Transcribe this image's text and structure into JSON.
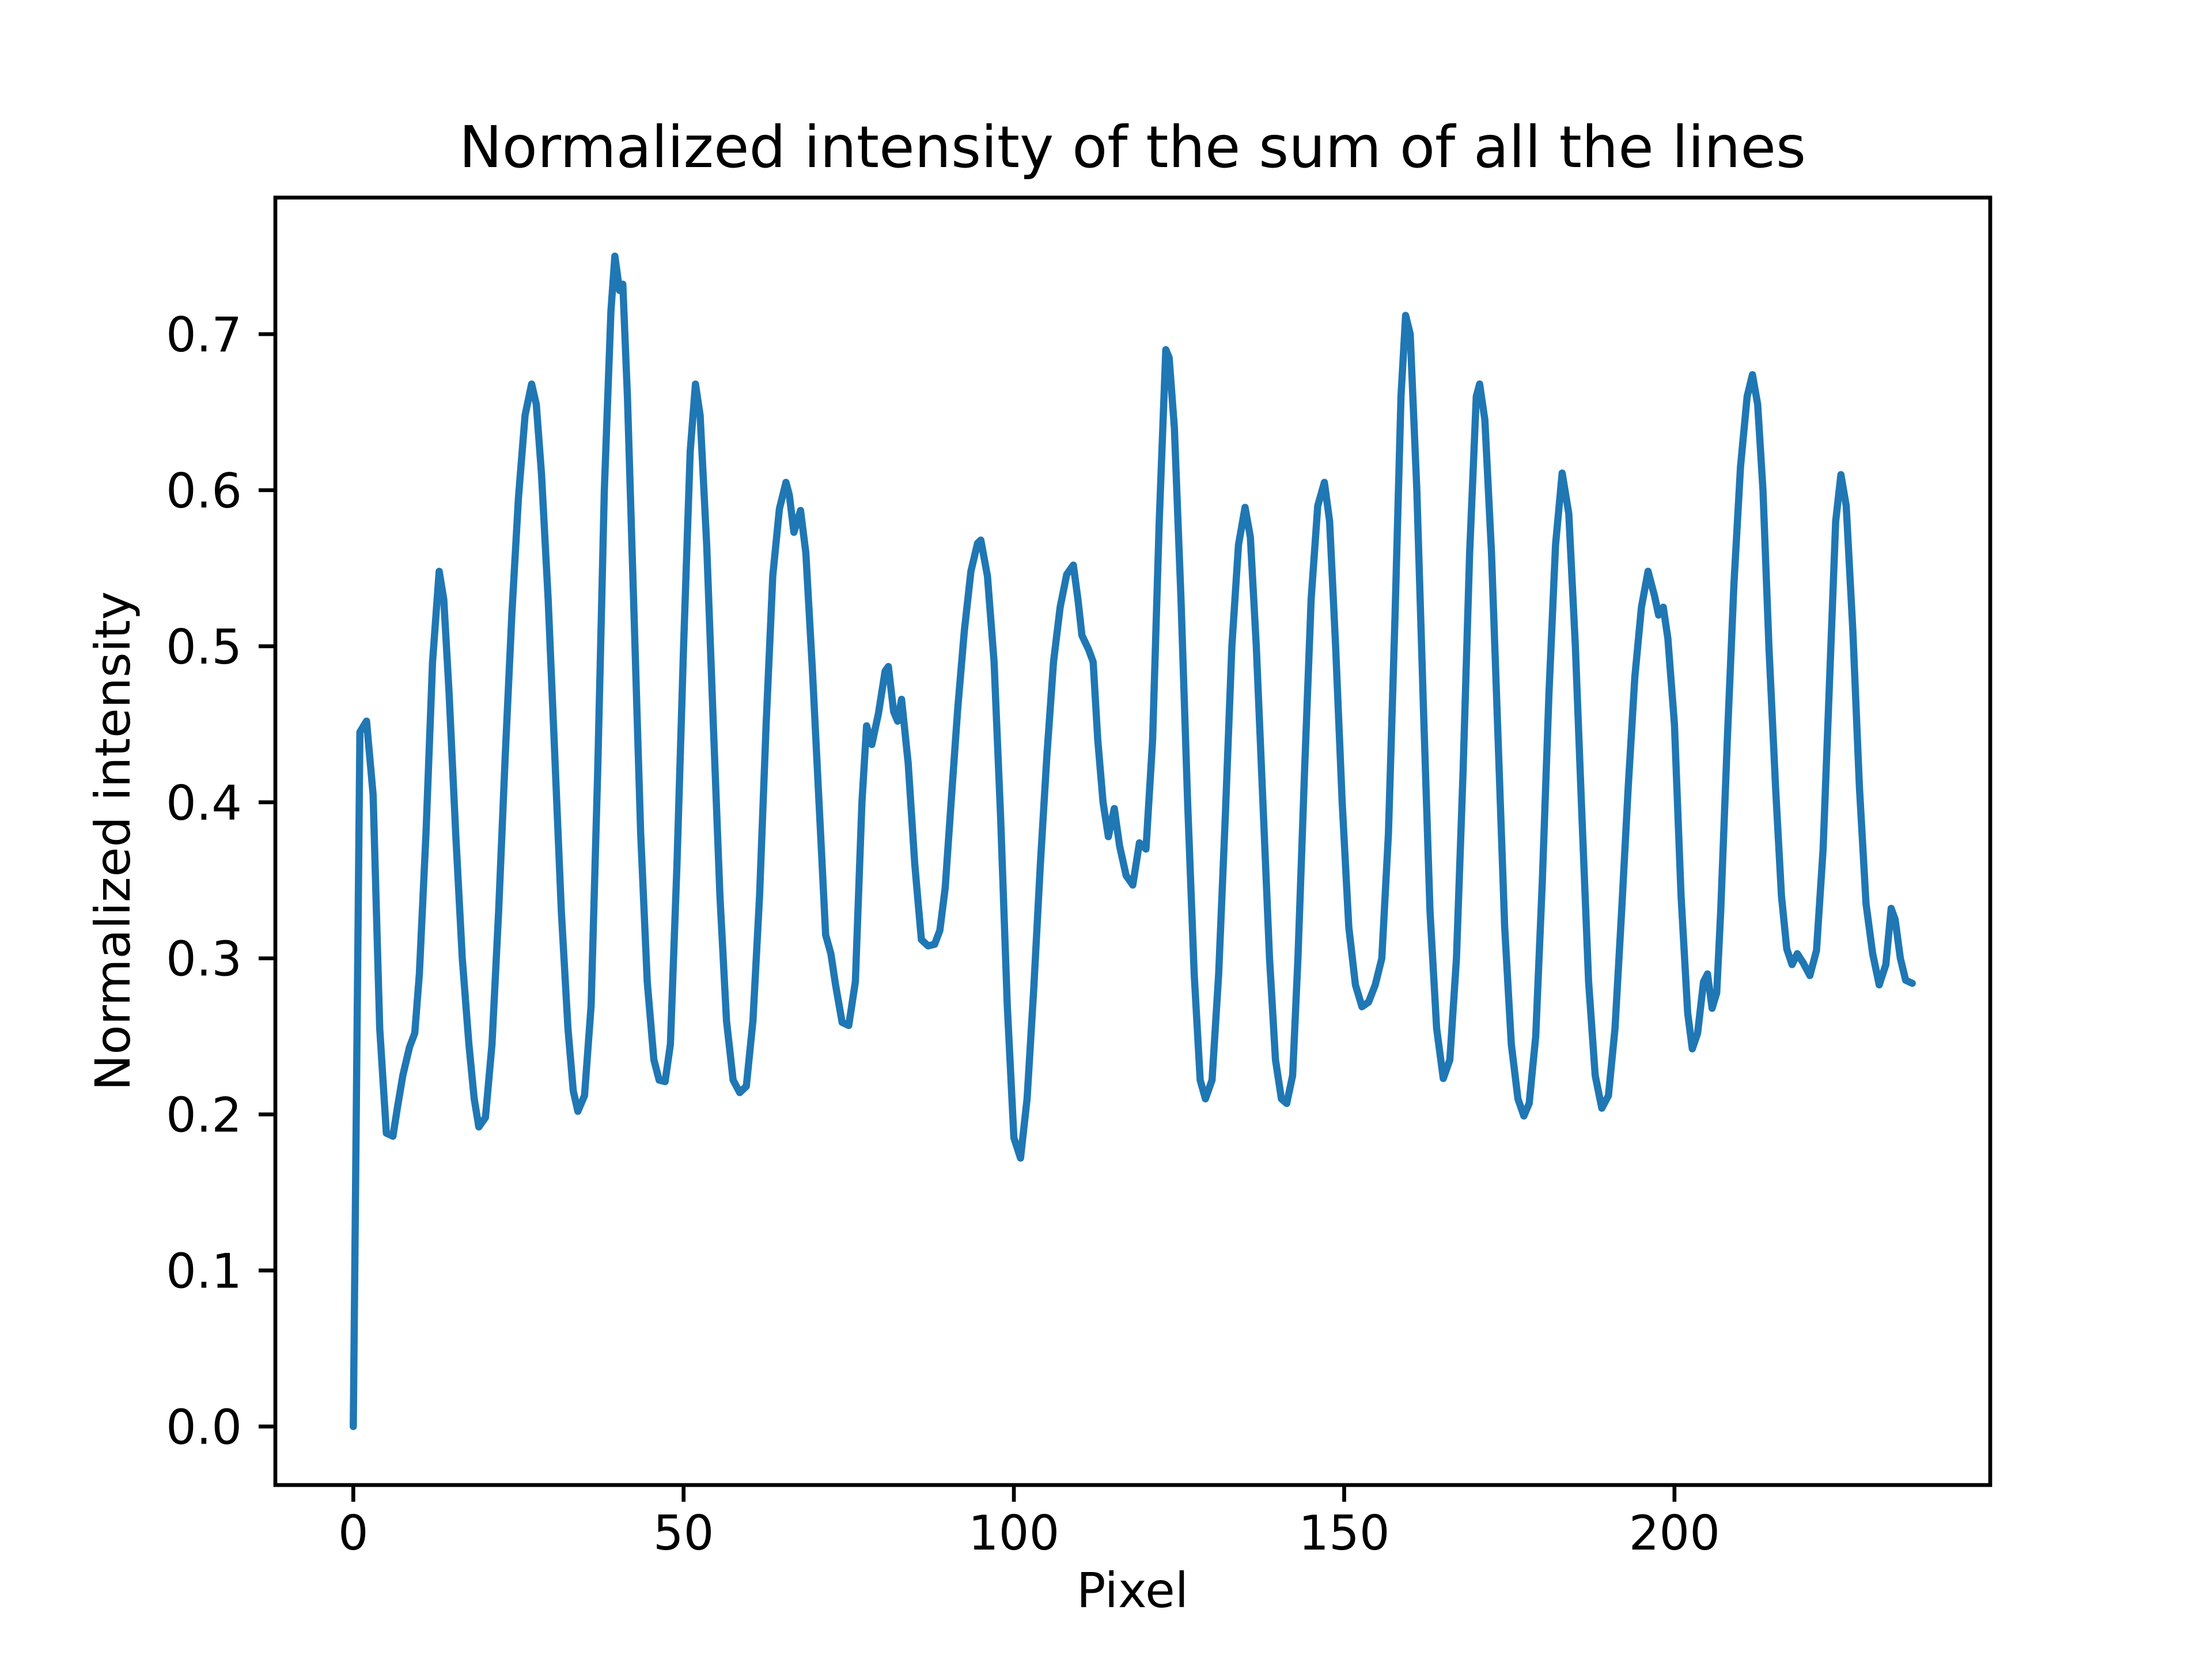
{
  "figure": {
    "background": "#ffffff",
    "spine_color": "#000000"
  },
  "chart_data": {
    "type": "line",
    "title": "Normalized intensity of the sum of all the lines",
    "xlabel": "Pixel",
    "ylabel": "Normalized intensity",
    "xlim": [
      -11.8,
      247.8
    ],
    "ylim": [
      -0.0375,
      0.7875
    ],
    "grid": false,
    "legend": null,
    "line_color": "#1f77b4",
    "x_ticks": [
      0,
      50,
      100,
      150,
      200
    ],
    "x_tick_labels": [
      "0",
      "50",
      "100",
      "150",
      "200"
    ],
    "y_ticks": [
      0.0,
      0.1,
      0.2,
      0.3,
      0.4,
      0.5,
      0.6,
      0.7
    ],
    "y_tick_labels": [
      "0.0",
      "0.1",
      "0.2",
      "0.3",
      "0.4",
      "0.5",
      "0.6",
      "0.7"
    ],
    "points": [
      [
        0,
        0.0
      ],
      [
        1,
        0.445
      ],
      [
        2,
        0.452
      ],
      [
        3,
        0.405
      ],
      [
        4,
        0.255
      ],
      [
        5,
        0.188
      ],
      [
        6,
        0.186
      ],
      [
        6.7,
        0.205
      ],
      [
        7.5,
        0.225
      ],
      [
        8.5,
        0.243
      ],
      [
        9.3,
        0.252
      ],
      [
        10,
        0.29
      ],
      [
        11,
        0.38
      ],
      [
        12,
        0.49
      ],
      [
        13,
        0.548
      ],
      [
        13.7,
        0.53
      ],
      [
        14.5,
        0.47
      ],
      [
        15.5,
        0.38
      ],
      [
        16.5,
        0.3
      ],
      [
        17.5,
        0.245
      ],
      [
        18.3,
        0.21
      ],
      [
        19,
        0.192
      ],
      [
        20,
        0.198
      ],
      [
        21,
        0.245
      ],
      [
        22,
        0.33
      ],
      [
        23,
        0.43
      ],
      [
        24,
        0.52
      ],
      [
        25,
        0.595
      ],
      [
        26,
        0.648
      ],
      [
        27,
        0.668
      ],
      [
        27.7,
        0.655
      ],
      [
        28.5,
        0.61
      ],
      [
        29.5,
        0.53
      ],
      [
        30.5,
        0.43
      ],
      [
        31.5,
        0.33
      ],
      [
        32.5,
        0.255
      ],
      [
        33.3,
        0.215
      ],
      [
        34,
        0.202
      ],
      [
        35,
        0.212
      ],
      [
        36,
        0.27
      ],
      [
        37,
        0.42
      ],
      [
        38,
        0.6
      ],
      [
        39,
        0.715
      ],
      [
        39.6,
        0.75
      ],
      [
        40.3,
        0.728
      ],
      [
        40.8,
        0.732
      ],
      [
        41.5,
        0.66
      ],
      [
        42.5,
        0.52
      ],
      [
        43.5,
        0.38
      ],
      [
        44.5,
        0.285
      ],
      [
        45.5,
        0.235
      ],
      [
        46.3,
        0.222
      ],
      [
        47.2,
        0.221
      ],
      [
        48,
        0.245
      ],
      [
        49,
        0.36
      ],
      [
        50,
        0.5
      ],
      [
        51,
        0.625
      ],
      [
        51.8,
        0.668
      ],
      [
        52.5,
        0.648
      ],
      [
        53.5,
        0.565
      ],
      [
        54.5,
        0.45
      ],
      [
        55.5,
        0.34
      ],
      [
        56.5,
        0.26
      ],
      [
        57.5,
        0.222
      ],
      [
        58.5,
        0.214
      ],
      [
        59.5,
        0.218
      ],
      [
        60.5,
        0.26
      ],
      [
        61.5,
        0.34
      ],
      [
        62.5,
        0.45
      ],
      [
        63.5,
        0.545
      ],
      [
        64.5,
        0.588
      ],
      [
        65.5,
        0.605
      ],
      [
        66,
        0.597
      ],
      [
        66.7,
        0.573
      ],
      [
        67.7,
        0.587
      ],
      [
        68.5,
        0.56
      ],
      [
        69.5,
        0.485
      ],
      [
        70.5,
        0.4
      ],
      [
        71.5,
        0.315
      ],
      [
        72.3,
        0.303
      ],
      [
        73,
        0.283
      ],
      [
        74,
        0.259
      ],
      [
        75,
        0.257
      ],
      [
        76,
        0.285
      ],
      [
        77,
        0.4
      ],
      [
        77.7,
        0.449
      ],
      [
        78.5,
        0.437
      ],
      [
        79.5,
        0.457
      ],
      [
        80.5,
        0.484
      ],
      [
        81,
        0.487
      ],
      [
        81.8,
        0.458
      ],
      [
        82.4,
        0.452
      ],
      [
        83,
        0.466
      ],
      [
        84,
        0.425
      ],
      [
        85,
        0.36
      ],
      [
        86,
        0.312
      ],
      [
        87,
        0.308
      ],
      [
        88,
        0.309
      ],
      [
        88.8,
        0.318
      ],
      [
        89.6,
        0.345
      ],
      [
        90.5,
        0.4
      ],
      [
        91.5,
        0.46
      ],
      [
        92.5,
        0.51
      ],
      [
        93.5,
        0.548
      ],
      [
        94.5,
        0.566
      ],
      [
        95,
        0.568
      ],
      [
        96,
        0.545
      ],
      [
        97,
        0.49
      ],
      [
        98,
        0.39
      ],
      [
        99,
        0.27
      ],
      [
        100,
        0.185
      ],
      [
        101,
        0.172
      ],
      [
        102,
        0.21
      ],
      [
        103,
        0.28
      ],
      [
        104,
        0.36
      ],
      [
        105,
        0.43
      ],
      [
        106,
        0.49
      ],
      [
        107,
        0.525
      ],
      [
        108,
        0.546
      ],
      [
        109,
        0.552
      ],
      [
        109.7,
        0.53
      ],
      [
        110.3,
        0.507
      ],
      [
        111.3,
        0.498
      ],
      [
        112,
        0.49
      ],
      [
        112.7,
        0.44
      ],
      [
        113.5,
        0.4
      ],
      [
        114.3,
        0.378
      ],
      [
        115.2,
        0.396
      ],
      [
        116,
        0.372
      ],
      [
        117,
        0.353
      ],
      [
        118,
        0.347
      ],
      [
        119,
        0.374
      ],
      [
        120,
        0.37
      ],
      [
        121,
        0.44
      ],
      [
        122,
        0.58
      ],
      [
        123,
        0.69
      ],
      [
        123.5,
        0.685
      ],
      [
        124.3,
        0.64
      ],
      [
        125.3,
        0.53
      ],
      [
        126.3,
        0.4
      ],
      [
        127.3,
        0.29
      ],
      [
        128.2,
        0.222
      ],
      [
        129,
        0.21
      ],
      [
        130,
        0.222
      ],
      [
        131,
        0.29
      ],
      [
        132,
        0.39
      ],
      [
        133,
        0.5
      ],
      [
        134,
        0.565
      ],
      [
        135,
        0.589
      ],
      [
        135.8,
        0.57
      ],
      [
        136.7,
        0.5
      ],
      [
        137.7,
        0.4
      ],
      [
        138.7,
        0.3
      ],
      [
        139.6,
        0.235
      ],
      [
        140.5,
        0.21
      ],
      [
        141.3,
        0.207
      ],
      [
        142.2,
        0.225
      ],
      [
        143,
        0.3
      ],
      [
        144,
        0.42
      ],
      [
        145,
        0.53
      ],
      [
        146,
        0.59
      ],
      [
        147,
        0.605
      ],
      [
        147.8,
        0.58
      ],
      [
        148.7,
        0.5
      ],
      [
        149.7,
        0.4
      ],
      [
        150.7,
        0.32
      ],
      [
        151.7,
        0.283
      ],
      [
        152.7,
        0.269
      ],
      [
        153.7,
        0.272
      ],
      [
        154.7,
        0.283
      ],
      [
        155.7,
        0.3
      ],
      [
        156.7,
        0.38
      ],
      [
        157.7,
        0.52
      ],
      [
        158.6,
        0.66
      ],
      [
        159.3,
        0.712
      ],
      [
        160,
        0.7
      ],
      [
        161,
        0.6
      ],
      [
        162,
        0.46
      ],
      [
        163,
        0.33
      ],
      [
        164,
        0.255
      ],
      [
        165,
        0.223
      ],
      [
        166,
        0.235
      ],
      [
        167,
        0.3
      ],
      [
        168,
        0.42
      ],
      [
        169,
        0.56
      ],
      [
        170,
        0.66
      ],
      [
        170.5,
        0.668
      ],
      [
        171.3,
        0.645
      ],
      [
        172.3,
        0.56
      ],
      [
        173.3,
        0.44
      ],
      [
        174.3,
        0.32
      ],
      [
        175.3,
        0.245
      ],
      [
        176.3,
        0.21
      ],
      [
        177.2,
        0.199
      ],
      [
        178,
        0.207
      ],
      [
        179,
        0.25
      ],
      [
        180,
        0.35
      ],
      [
        181,
        0.47
      ],
      [
        182,
        0.565
      ],
      [
        183,
        0.611
      ],
      [
        184,
        0.585
      ],
      [
        185,
        0.5
      ],
      [
        186,
        0.39
      ],
      [
        187,
        0.285
      ],
      [
        188,
        0.225
      ],
      [
        189,
        0.204
      ],
      [
        190,
        0.212
      ],
      [
        191,
        0.255
      ],
      [
        192,
        0.33
      ],
      [
        193,
        0.41
      ],
      [
        194,
        0.48
      ],
      [
        195,
        0.525
      ],
      [
        196,
        0.548
      ],
      [
        197,
        0.532
      ],
      [
        197.6,
        0.52
      ],
      [
        198.3,
        0.525
      ],
      [
        199,
        0.505
      ],
      [
        200,
        0.45
      ],
      [
        201,
        0.34
      ],
      [
        202,
        0.265
      ],
      [
        202.7,
        0.242
      ],
      [
        203.5,
        0.252
      ],
      [
        204.4,
        0.285
      ],
      [
        205,
        0.29
      ],
      [
        205.7,
        0.268
      ],
      [
        206.4,
        0.278
      ],
      [
        207,
        0.33
      ],
      [
        208,
        0.44
      ],
      [
        209,
        0.54
      ],
      [
        210,
        0.615
      ],
      [
        211,
        0.66
      ],
      [
        211.8,
        0.674
      ],
      [
        212.6,
        0.655
      ],
      [
        213.4,
        0.6
      ],
      [
        214.3,
        0.5
      ],
      [
        215.3,
        0.41
      ],
      [
        216.2,
        0.34
      ],
      [
        217,
        0.306
      ],
      [
        217.8,
        0.296
      ],
      [
        218.6,
        0.303
      ],
      [
        219.5,
        0.297
      ],
      [
        220.5,
        0.289
      ],
      [
        221.5,
        0.305
      ],
      [
        222.5,
        0.37
      ],
      [
        223.5,
        0.48
      ],
      [
        224.4,
        0.58
      ],
      [
        225.2,
        0.61
      ],
      [
        226,
        0.59
      ],
      [
        227,
        0.51
      ],
      [
        228,
        0.41
      ],
      [
        229,
        0.335
      ],
      [
        230,
        0.303
      ],
      [
        231,
        0.283
      ],
      [
        232,
        0.296
      ],
      [
        232.8,
        0.332
      ],
      [
        233.4,
        0.325
      ],
      [
        234.2,
        0.3
      ],
      [
        235,
        0.286
      ],
      [
        236,
        0.284
      ]
    ]
  }
}
